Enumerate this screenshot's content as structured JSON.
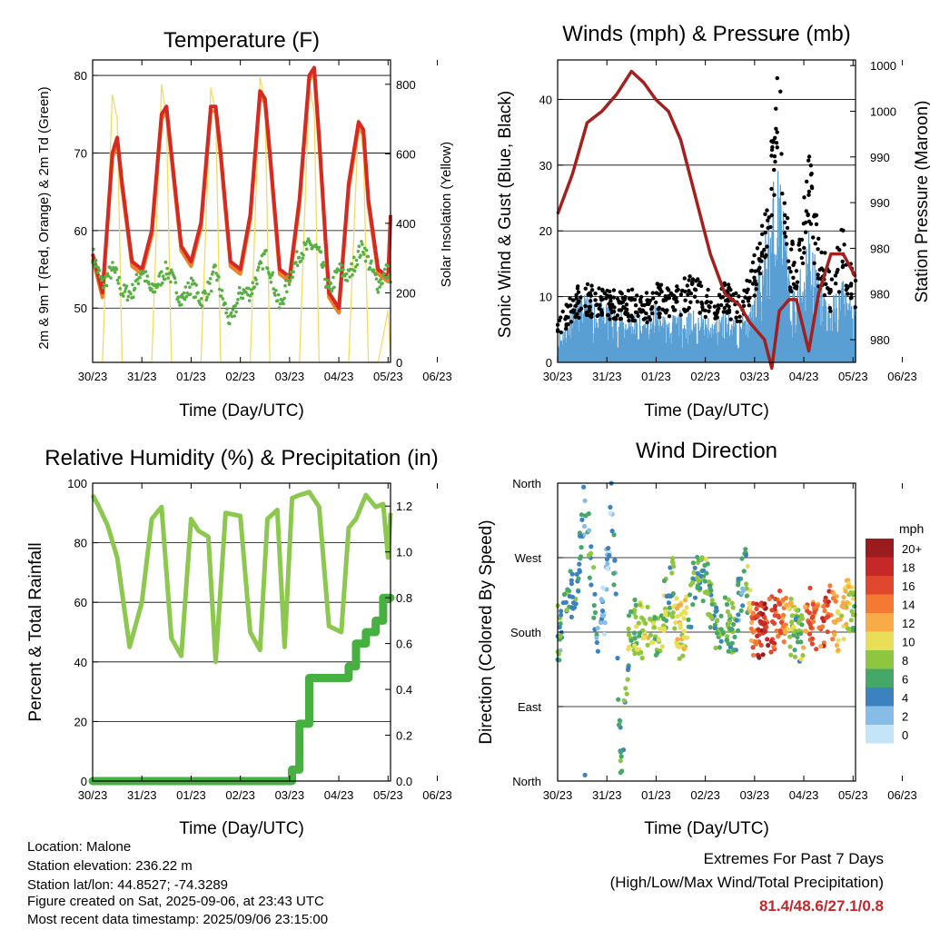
{
  "x_tick_labels": [
    "30/23",
    "31/23",
    "01/23",
    "02/23",
    "03/23",
    "04/23",
    "05/23",
    "06/23"
  ],
  "temperature": {
    "title": "Temperature (F)",
    "xlabel": "Time (Day/UTC)",
    "ylabel_left": "2m & 9m T (Red, Orange) & 2m Td (Green)",
    "ylabel_right": "Solar Insolation (Yellow)",
    "yticks_left": [
      "50",
      "60",
      "70",
      "80"
    ],
    "yticks_right": [
      "0",
      "200",
      "400",
      "600",
      "800"
    ],
    "colors": {
      "t2m": "#d42a22",
      "t9m": "#f07f2a",
      "td": "#58b043",
      "solar": "#f4dc62"
    }
  },
  "winds": {
    "title": "Winds (mph) & Pressure (mb)",
    "xlabel": "Time (Day/UTC)",
    "ylabel_left": "Sonic Wind & Gust (Blue, Black)",
    "ylabel_right": "Station Pressure (Maroon)",
    "yticks_left": [
      "0",
      "10",
      "20",
      "30",
      "40"
    ],
    "yticks_right": [
      "980",
      "980",
      "980",
      "990",
      "990",
      "1000",
      "1000"
    ],
    "colors": {
      "wind": "#5a9fd4",
      "gust": "#000000",
      "pressure": "#a3201e"
    }
  },
  "humidity": {
    "title": "Relative Humidity (%) & Precipitation (in)",
    "xlabel": "Time (Day/UTC)",
    "ylabel_left": "Percent & Total Rainfall",
    "yticks_left": [
      "0",
      "20",
      "40",
      "60",
      "80",
      "100"
    ],
    "yticks_right": [
      "0.0",
      "0.2",
      "0.4",
      "0.6",
      "0.8",
      "1.0",
      "1.2"
    ],
    "colors": {
      "rh": "#8cc850",
      "precip": "#46b040"
    }
  },
  "direction": {
    "title": "Wind Direction",
    "xlabel": "Time (Day/UTC)",
    "ylabel_left": "Direction (Colored By Speed)",
    "yticks_left": [
      "North",
      "East",
      "South",
      "West",
      "North"
    ],
    "legend_title": "mph",
    "legend_labels": [
      "20+",
      "18",
      "16",
      "14",
      "12",
      "10",
      "8",
      "6",
      "4",
      "2",
      "0"
    ],
    "legend_colors": [
      "#9a1c1e",
      "#c62828",
      "#e0472e",
      "#f47a33",
      "#f8ac48",
      "#e8de58",
      "#8ec63f",
      "#45a868",
      "#3b82bf",
      "#86bce6",
      "#c4e5f7"
    ]
  },
  "info": {
    "location": "Location: Malone",
    "elevation": "Station elevation: 236.22 m",
    "latlon": "Station lat/lon: 44.8527; -74.3289",
    "created": "Figure created on Sat, 2025-09-06, at 23:43 UTC",
    "recent": "Most recent data timestamp: 2025/09/06 23:15:00"
  },
  "extremes": {
    "title": "Extremes For Past 7 Days",
    "subtitle": "(High/Low/Max Wind/Total Precipitation)",
    "values": "81.4/48.6/27.1/0.8"
  },
  "chart_data": [
    {
      "type": "line",
      "title": "Temperature (F)",
      "x_days": [
        0,
        0.2,
        0.4,
        0.5,
        0.6,
        0.8,
        1,
        1.2,
        1.4,
        1.5,
        1.6,
        1.8,
        2,
        2.2,
        2.4,
        2.5,
        2.6,
        2.8,
        3,
        3.2,
        3.4,
        3.5,
        3.6,
        3.8,
        4,
        4.2,
        4.4,
        4.5,
        4.6,
        4.8,
        5,
        5.2,
        5.4,
        5.5,
        5.6,
        5.8,
        6,
        6.05
      ],
      "series": [
        {
          "name": "2m T",
          "values": [
            57,
            52,
            70,
            72,
            66,
            56,
            55,
            60,
            75,
            76,
            70,
            58,
            56,
            61,
            76,
            76,
            70,
            56,
            55,
            62,
            78,
            77,
            70,
            55,
            54,
            64,
            80,
            81,
            72,
            52,
            50,
            66,
            74,
            73,
            64,
            55,
            54,
            62
          ]
        },
        {
          "name": "2m Td",
          "values": [
            57,
            53,
            55,
            54,
            52,
            52,
            55,
            52,
            54,
            55,
            54,
            51,
            53,
            51,
            53,
            55,
            52,
            48,
            52,
            52,
            55,
            57,
            55,
            50,
            54,
            57,
            58,
            58,
            57,
            52,
            55,
            54,
            57,
            58,
            56,
            53,
            55,
            53
          ]
        },
        {
          "name": "Solar",
          "values": [
            0,
            0,
            770,
            700,
            0,
            0,
            0,
            0,
            800,
            700,
            0,
            0,
            0,
            0,
            790,
            720,
            0,
            0,
            0,
            0,
            820,
            750,
            0,
            0,
            0,
            0,
            800,
            720,
            0,
            0,
            0,
            0,
            700,
            600,
            0,
            0,
            150,
            0
          ]
        }
      ],
      "ylim_left": [
        43,
        82
      ],
      "ylim_right": [
        0,
        870
      ]
    },
    {
      "type": "line",
      "title": "Winds (mph) & Pressure (mb)",
      "x_days": [
        0,
        0.3,
        0.6,
        0.9,
        1.2,
        1.5,
        1.75,
        2,
        2.25,
        2.5,
        2.8,
        3.1,
        3.4,
        3.7,
        3.9,
        4.2,
        4.35,
        4.5,
        4.7,
        4.85,
        5.1,
        5.3,
        5.55,
        5.8,
        6.05
      ],
      "series": [
        {
          "name": "Pressure",
          "values": [
            990.5,
            994,
            998.5,
            999.5,
            1001,
            1003,
            1002,
            1000.5,
            999.5,
            997,
            992,
            987,
            983.5,
            982.5,
            981,
            979.5,
            977,
            982,
            983,
            983,
            978.5,
            983.5,
            987,
            987,
            985
          ]
        },
        {
          "name": "Sonic Wind",
          "values": [
            3,
            7,
            8,
            7,
            6,
            6,
            5,
            7,
            5,
            6,
            6,
            5,
            6,
            5,
            6,
            14,
            20,
            24,
            10,
            8,
            17,
            10,
            7,
            10,
            6
          ]
        },
        {
          "name": "Gust",
          "values": [
            5,
            9,
            10,
            9,
            9,
            9,
            8,
            10,
            9,
            10,
            11,
            9,
            10,
            8,
            11,
            19,
            30,
            40,
            16,
            14,
            27,
            16,
            11,
            17,
            10
          ]
        }
      ],
      "ylim_left": [
        0,
        46
      ],
      "ylim_right": [
        977.5,
        1004
      ]
    },
    {
      "type": "line",
      "title": "Relative Humidity (%) & Precipitation (in)",
      "x_days": [
        0,
        0.1,
        0.3,
        0.5,
        0.75,
        1,
        1.2,
        1.4,
        1.6,
        1.8,
        2,
        2.15,
        2.35,
        2.5,
        2.7,
        3,
        3.2,
        3.4,
        3.55,
        3.75,
        3.9,
        4.05,
        4.2,
        4.4,
        4.6,
        4.8,
        5.05,
        5.2,
        5.35,
        5.55,
        5.75,
        5.9,
        6,
        6.05
      ],
      "series": [
        {
          "name": "RH",
          "values": [
            96,
            93,
            86,
            75,
            45,
            60,
            88,
            92,
            48,
            42,
            88,
            84,
            82,
            40,
            90,
            89,
            50,
            44,
            88,
            91,
            45,
            95,
            96,
            97,
            92,
            52,
            50,
            85,
            88,
            96,
            92,
            93,
            75,
            90
          ]
        },
        {
          "name": "Total Rainfall",
          "values": [
            0,
            0,
            0,
            0,
            0,
            0,
            0,
            0,
            0,
            0,
            0,
            0,
            0,
            0,
            0,
            0,
            0,
            0,
            0,
            0,
            0,
            0.05,
            0.25,
            0.45,
            0.45,
            0.45,
            0.45,
            0.5,
            0.6,
            0.65,
            0.7,
            0.8,
            0.8,
            0.8
          ]
        }
      ],
      "ylim_left": [
        0,
        100
      ],
      "ylim_right": [
        0,
        1.3
      ]
    },
    {
      "type": "scatter",
      "title": "Wind Direction",
      "y_categories": [
        "North",
        "East",
        "South",
        "West",
        "North"
      ],
      "x_days": [
        0.05,
        0.2,
        0.4,
        0.55,
        0.7,
        0.8,
        0.95,
        1.1,
        1.3,
        1.45,
        1.6,
        1.75,
        1.95,
        2.1,
        2.3,
        2.45,
        2.6,
        2.8,
        3,
        3.2,
        3.4,
        3.6,
        3.8,
        3.95,
        4.1,
        4.3,
        4.5,
        4.7,
        4.9,
        5.1,
        5.3,
        5.5,
        5.7,
        5.9,
        6.05
      ],
      "direction_deg": [
        180,
        210,
        250,
        340,
        250,
        180,
        210,
        340,
        5,
        180,
        190,
        180,
        180,
        185,
        250,
        180,
        185,
        250,
        250,
        180,
        190,
        185,
        260,
        180,
        180,
        185,
        200,
        190,
        170,
        200,
        190,
        205,
        190,
        215,
        200
      ],
      "speed_mph": [
        5,
        6,
        5,
        4,
        6,
        3,
        1,
        4,
        5,
        7,
        8,
        9,
        8,
        9,
        6,
        10,
        10,
        5,
        7,
        6,
        7,
        6,
        4,
        13,
        18,
        17,
        15,
        10,
        6,
        15,
        14,
        16,
        11,
        10,
        7
      ]
    }
  ]
}
